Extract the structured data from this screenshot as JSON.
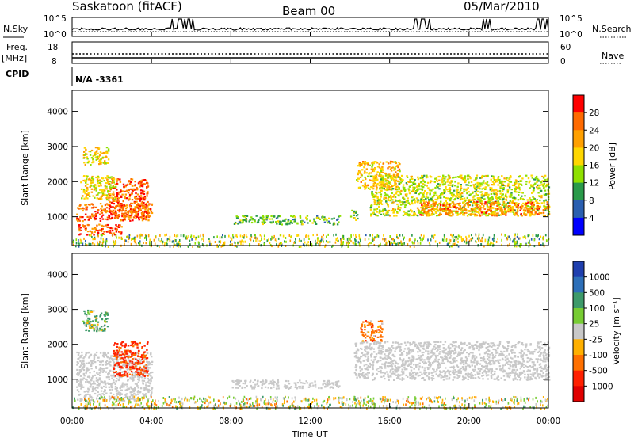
{
  "header": {
    "station": "Saskatoon (fitACF)",
    "beam": "Beam 00",
    "date": "05/Mar/2010"
  },
  "left_labels": {
    "nsky": "N.Sky",
    "freq_line1": "Freq.",
    "freq_line2": "[MHz]",
    "cpid": "CPID"
  },
  "right_labels": {
    "nsearch": "N.Search",
    "nave": "Nave"
  },
  "cpid_value": "N/A -3361",
  "noise_panel": {
    "ticks_left": [
      "10^5",
      "10^0"
    ],
    "ticks_right": [
      "10^5",
      "10^0"
    ]
  },
  "freq_panel": {
    "ticks_left": [
      "18",
      "8"
    ],
    "ticks_right": [
      "60",
      "0"
    ]
  },
  "power_scale": {
    "label": "Power [dB]",
    "ticks": [
      "28",
      "24",
      "20",
      "16",
      "12",
      "8",
      "4"
    ],
    "colors": [
      "#ff0000",
      "#ff6a00",
      "#ffa000",
      "#ffd700",
      "#8fe000",
      "#2a9a4a",
      "#2a5fb0",
      "#0000ff"
    ]
  },
  "velocity_scale": {
    "label": "Velocity [m s⁻¹]",
    "ticks": [
      "1000",
      "500",
      "100",
      "25",
      "-25",
      "-100",
      "-500",
      "-1000"
    ],
    "colors": [
      "#1f3fae",
      "#2d6fb8",
      "#3d9a6a",
      "#77cc33",
      "#c8c8c8",
      "#ffb000",
      "#ff7000",
      "#ff2000",
      "#e00000"
    ]
  },
  "axes": {
    "ylabel": "Slant Range [km]",
    "xlabel": "Time UT",
    "y_ticks": [
      "4000",
      "3000",
      "2000",
      "1000"
    ],
    "x_ticks": [
      "00:00",
      "04:00",
      "08:00",
      "12:00",
      "16:00",
      "20:00",
      "00:00"
    ]
  },
  "chart_data": [
    {
      "type": "heatmap",
      "panel": "power",
      "x_range_hours": [
        0,
        24
      ],
      "ylim": [
        180,
        4600
      ],
      "regions": [
        {
          "t0": 0.2,
          "t1": 4.0,
          "r0": 900,
          "r1": 1400,
          "value": 26
        },
        {
          "t0": 0.3,
          "t1": 2.5,
          "r0": 500,
          "r1": 800,
          "value": 27
        },
        {
          "t0": 1.8,
          "t1": 3.8,
          "r0": 1000,
          "r1": 2100,
          "value": 26
        },
        {
          "t0": 0.4,
          "t1": 2.2,
          "r0": 1500,
          "r1": 2200,
          "value": 18
        },
        {
          "t0": 0.5,
          "t1": 1.8,
          "r0": 2500,
          "r1": 3000,
          "value": 18
        },
        {
          "t0": 8.1,
          "t1": 13.5,
          "r0": 800,
          "r1": 1050,
          "value": 12
        },
        {
          "t0": 14.0,
          "t1": 14.4,
          "r0": 900,
          "r1": 1200,
          "value": 12
        },
        {
          "t0": 14.3,
          "t1": 16.5,
          "r0": 1800,
          "r1": 2600,
          "value": 20
        },
        {
          "t0": 15.0,
          "t1": 24.0,
          "r0": 1050,
          "r1": 2200,
          "value": 16
        },
        {
          "t0": 17.5,
          "t1": 24.0,
          "r0": 1050,
          "r1": 1450,
          "value": 24
        }
      ]
    },
    {
      "type": "heatmap",
      "panel": "velocity",
      "x_range_hours": [
        0,
        24
      ],
      "ylim": [
        180,
        4600
      ],
      "regions": [
        {
          "t0": 0.2,
          "t1": 4.0,
          "r0": 400,
          "r1": 1800,
          "value": 0
        },
        {
          "t0": 2.0,
          "t1": 3.8,
          "r0": 1100,
          "r1": 2100,
          "value": -600
        },
        {
          "t0": 0.5,
          "t1": 1.8,
          "r0": 2400,
          "r1": 3000,
          "value": 200
        },
        {
          "t0": 8.0,
          "t1": 13.5,
          "r0": 750,
          "r1": 1000,
          "value": 0
        },
        {
          "t0": 14.2,
          "t1": 24.0,
          "r0": 1000,
          "r1": 2100,
          "value": 0
        },
        {
          "t0": 14.5,
          "t1": 15.6,
          "r0": 2100,
          "r1": 2700,
          "value": -300
        }
      ]
    }
  ]
}
